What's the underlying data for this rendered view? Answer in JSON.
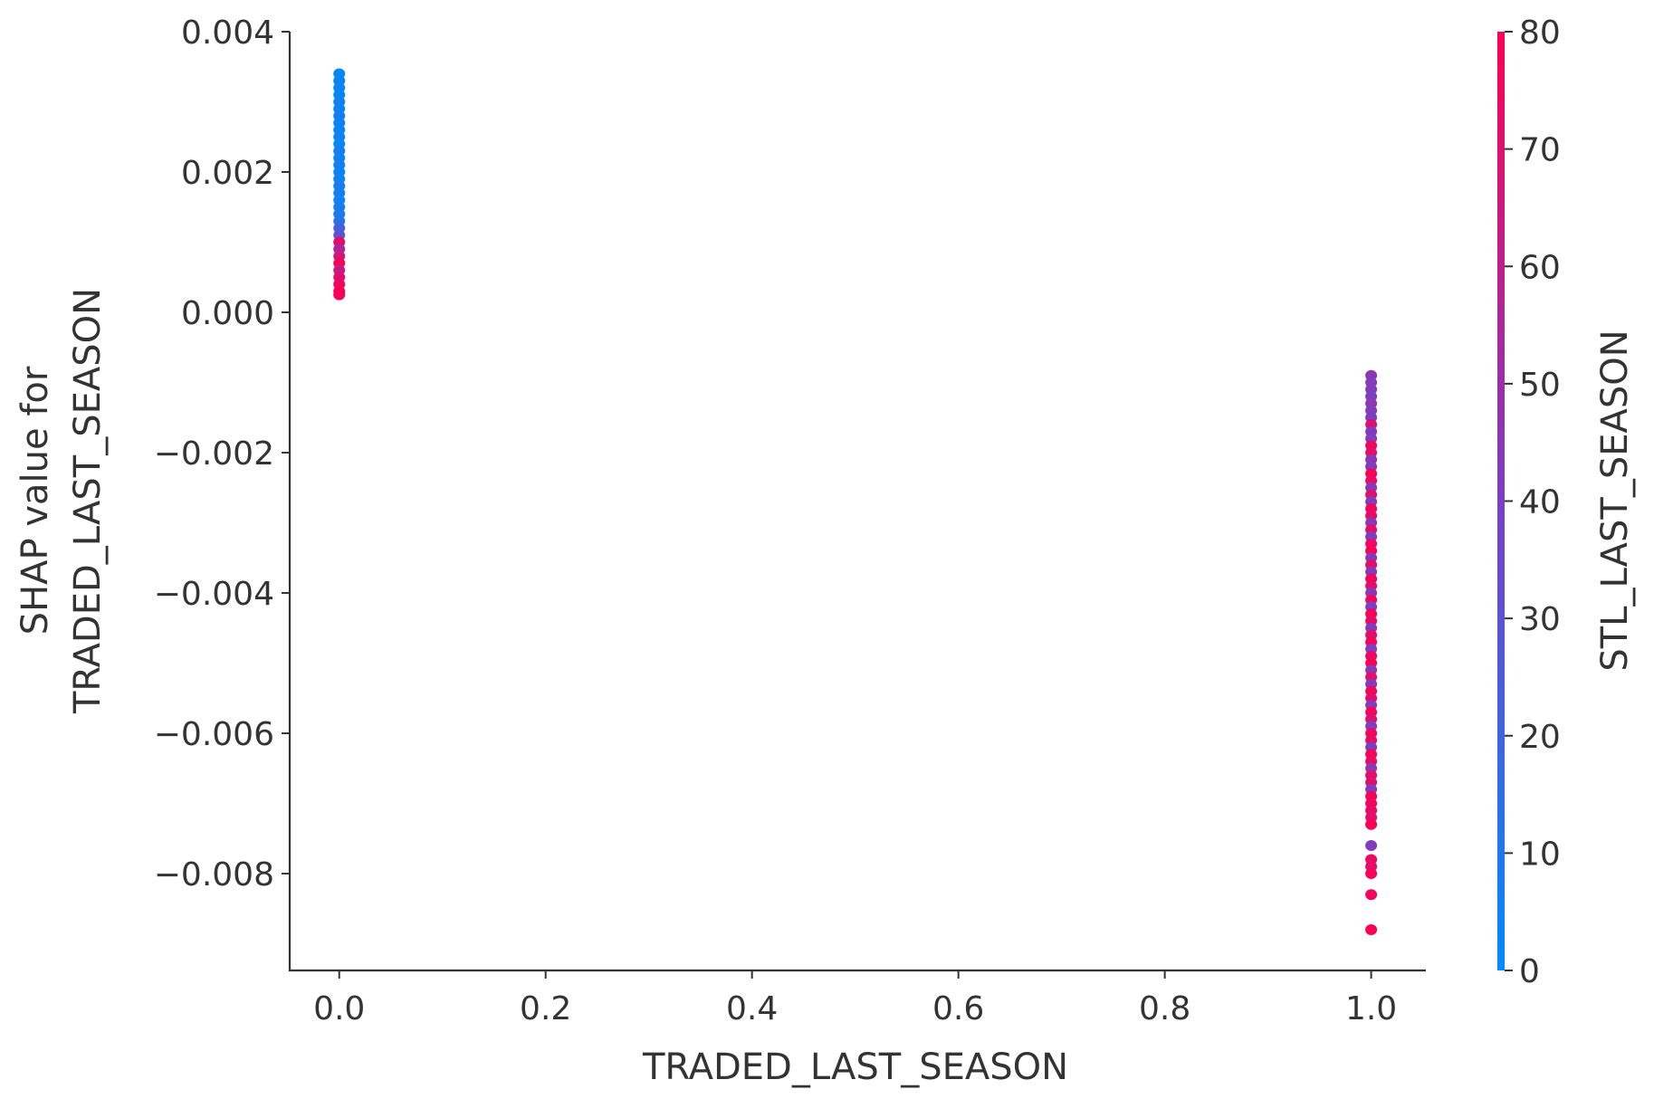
{
  "chart_data": {
    "type": "scatter",
    "xlabel": "TRADED_LAST_SEASON",
    "ylabel_lines": [
      "SHAP value for",
      "TRADED_LAST_SEASON"
    ],
    "xlim": [
      -0.048,
      1.053
    ],
    "ylim": [
      -0.00938,
      0.004
    ],
    "xticks": [
      0.0,
      0.2,
      0.4,
      0.6,
      0.8,
      1.0
    ],
    "xtick_labels": [
      "0.0",
      "0.2",
      "0.4",
      "0.6",
      "0.8",
      "1.0"
    ],
    "yticks": [
      0.004,
      0.002,
      0.0,
      -0.002,
      -0.004,
      -0.006,
      -0.008
    ],
    "ytick_labels": [
      "0.004",
      "0.002",
      "0.000",
      "−0.002",
      "−0.004",
      "−0.006",
      "−0.008"
    ],
    "grid": false,
    "colorbar": {
      "label": "STL_LAST_SEASON",
      "range": [
        0,
        80
      ],
      "ticks": [
        0,
        10,
        20,
        30,
        40,
        50,
        60,
        70,
        80
      ],
      "tick_labels": [
        "0",
        "10",
        "20",
        "30",
        "40",
        "50",
        "60",
        "70",
        "80"
      ],
      "colors": [
        "#008bfb",
        "#7b3fc4",
        "#ff0052"
      ]
    },
    "series": [
      {
        "x": 0,
        "y": [
          0.0034,
          0.0033,
          0.0032,
          0.0031,
          0.003,
          0.0029,
          0.0028,
          0.0027,
          0.0026,
          0.0025,
          0.0024,
          0.0023,
          0.0022,
          0.0021,
          0.002,
          0.0019,
          0.0018,
          0.0017,
          0.0016,
          0.0015,
          0.0014,
          0.0013,
          0.0012,
          0.0011,
          0.001,
          0.0009,
          0.0008,
          0.0007,
          0.0006,
          0.0005,
          0.0004,
          0.0003,
          0.00025
        ],
        "color_value": [
          2,
          3,
          4,
          2,
          5,
          3,
          6,
          4,
          3,
          5,
          2,
          6,
          4,
          7,
          3,
          5,
          8,
          6,
          4,
          7,
          9,
          12,
          22,
          30,
          72,
          55,
          65,
          78,
          62,
          70,
          75,
          80,
          78
        ]
      },
      {
        "x": 1,
        "y": [
          -0.0009,
          -0.001,
          -0.0011,
          -0.0012,
          -0.0013,
          -0.0014,
          -0.0015,
          -0.0016,
          -0.0017,
          -0.0018,
          -0.0019,
          -0.002,
          -0.0021,
          -0.0022,
          -0.0023,
          -0.0024,
          -0.0025,
          -0.0026,
          -0.0027,
          -0.0028,
          -0.0029,
          -0.003,
          -0.0031,
          -0.0032,
          -0.0033,
          -0.0034,
          -0.0035,
          -0.0036,
          -0.0037,
          -0.0038,
          -0.0039,
          -0.004,
          -0.0041,
          -0.0042,
          -0.0043,
          -0.0044,
          -0.0045,
          -0.0046,
          -0.0047,
          -0.0048,
          -0.0049,
          -0.005,
          -0.0051,
          -0.0052,
          -0.0053,
          -0.0054,
          -0.0055,
          -0.0056,
          -0.0057,
          -0.0058,
          -0.0059,
          -0.006,
          -0.0061,
          -0.0062,
          -0.0063,
          -0.0064,
          -0.0065,
          -0.0066,
          -0.0067,
          -0.0068,
          -0.0069,
          -0.007,
          -0.0071,
          -0.0072,
          -0.0073,
          -0.0076,
          -0.0078,
          -0.0079,
          -0.008,
          -0.0083,
          -0.0088
        ],
        "color_value": [
          45,
          42,
          44,
          40,
          46,
          43,
          41,
          70,
          44,
          42,
          75,
          72,
          45,
          43,
          78,
          74,
          44,
          70,
          42,
          76,
          73,
          45,
          72,
          41,
          74,
          78,
          44,
          71,
          43,
          76,
          72,
          45,
          75,
          40,
          78,
          73,
          44,
          70,
          77,
          42,
          74,
          79,
          45,
          71,
          43,
          76,
          72,
          44,
          78,
          70,
          42,
          75,
          73,
          41,
          77,
          74,
          45,
          72,
          70,
          43,
          78,
          76,
          74,
          71,
          79,
          42,
          75,
          72,
          78,
          76,
          80
        ]
      }
    ]
  }
}
